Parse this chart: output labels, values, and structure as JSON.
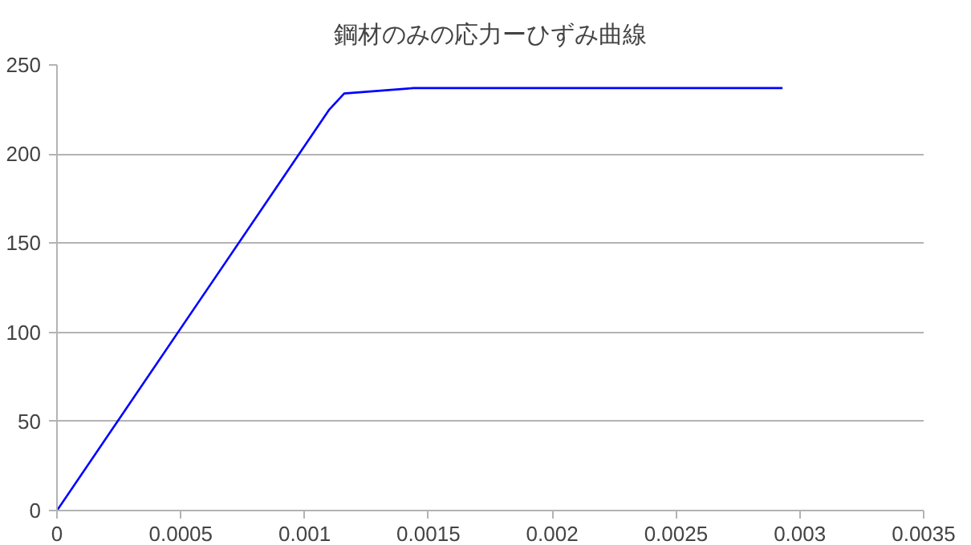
{
  "chart_data": {
    "type": "line",
    "title": "鋼材のみの応力ーひずみ曲線",
    "x": [
      0,
      0.0011,
      0.00116,
      0.00144,
      0.00293
    ],
    "series": [
      {
        "color": "#0000ff",
        "values": [
          0,
          225,
          234,
          237,
          237
        ]
      }
    ],
    "xlim": [
      0,
      0.0035
    ],
    "xticks": [
      0,
      0.0005,
      0.001,
      0.0015,
      0.002,
      0.0025,
      0.003,
      0.0035
    ],
    "ylim": [
      0,
      250
    ],
    "yticks": [
      0,
      50,
      100,
      150,
      200,
      250
    ],
    "grid": "y",
    "marker": "none",
    "line_style": "solid"
  }
}
